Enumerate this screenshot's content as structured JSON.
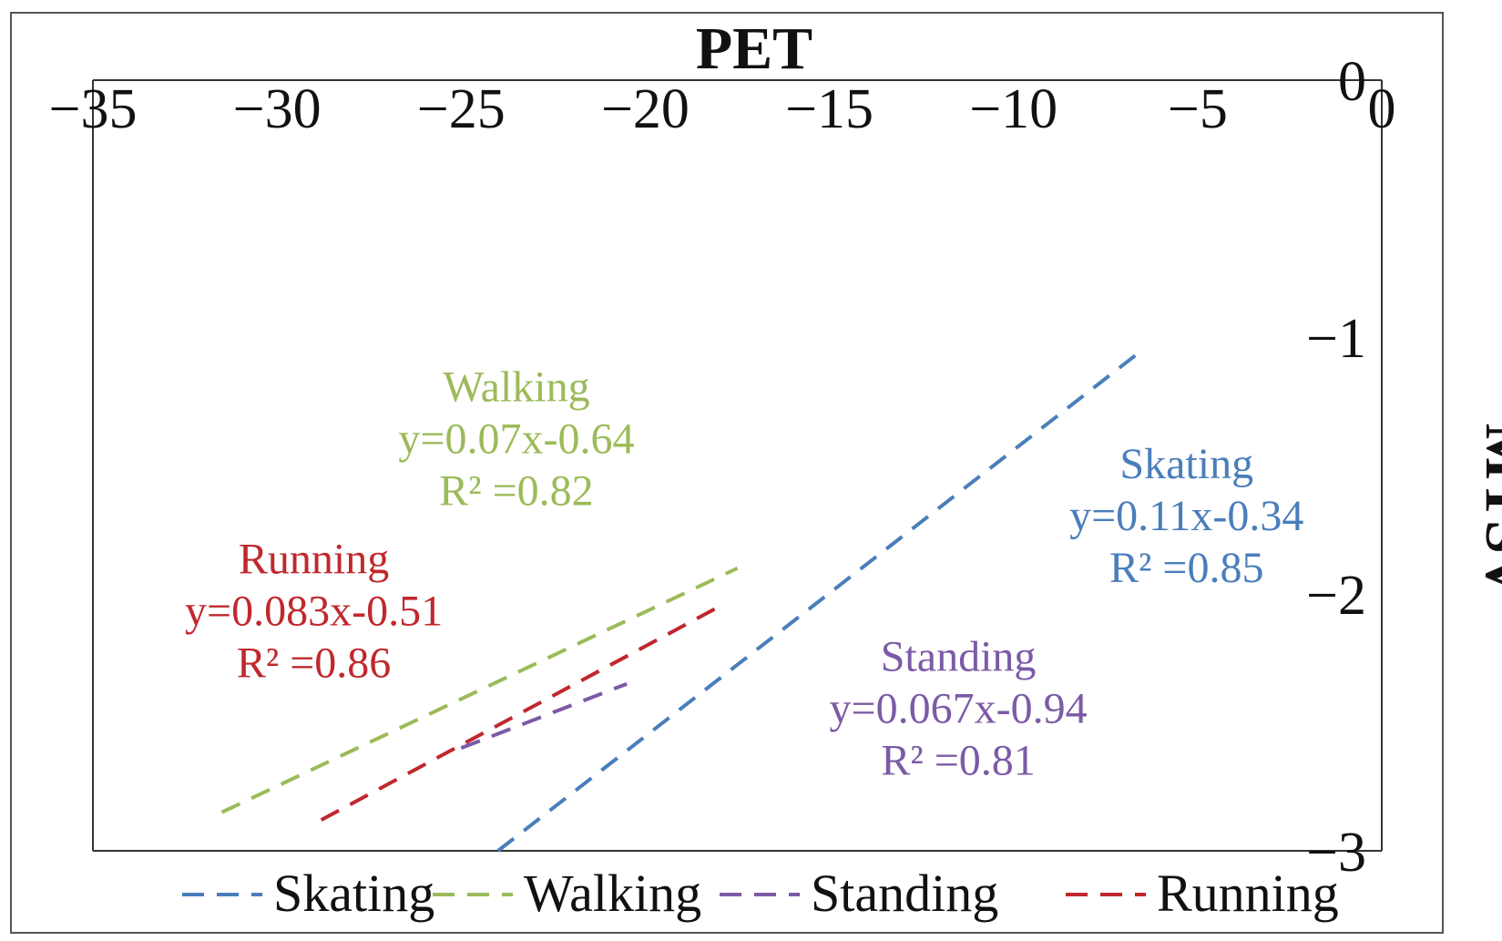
{
  "chart_data": {
    "type": "line",
    "xlabel": "PET",
    "ylabel": "MTSV",
    "xlim": [
      -35,
      0
    ],
    "ylim": [
      -3,
      0
    ],
    "xticks": [
      "−35",
      "−30",
      "−25",
      "−20",
      "−15",
      "−10",
      "−5",
      "0"
    ],
    "xtick_values": [
      -35,
      -30,
      -25,
      -20,
      -15,
      -10,
      -5,
      0
    ],
    "yticks": [
      "0",
      "−1",
      "−2",
      "−3"
    ],
    "ytick_values": [
      0,
      -1,
      -2,
      -3
    ],
    "grid": false,
    "legend_position": "bottom",
    "series": [
      {
        "name": "Skating",
        "color": "#4a7ebb",
        "x": [
          -24,
          -6.5
        ],
        "y": [
          -3.0,
          -1.05
        ],
        "equation": "y=0.11x-0.34",
        "r2": "R² =0.85"
      },
      {
        "name": "Walking",
        "color": "#9bbb59",
        "x": [
          -31.5,
          -17.5
        ],
        "y": [
          -2.85,
          -1.9
        ],
        "equation": "y=0.07x-0.64",
        "r2": "R² =0.82"
      },
      {
        "name": "Standing",
        "color": "#7b5aa6",
        "x": [
          -25,
          -20.5
        ],
        "y": [
          -2.6,
          -2.35
        ],
        "equation": "y=0.067x-0.94",
        "r2": "R² =0.81"
      },
      {
        "name": "Running",
        "color": "#c0282d",
        "x": [
          -28.8,
          -18
        ],
        "y": [
          -2.88,
          -2.05
        ],
        "equation": "y=0.083x-0.51",
        "r2": "R² =0.86"
      }
    ]
  }
}
